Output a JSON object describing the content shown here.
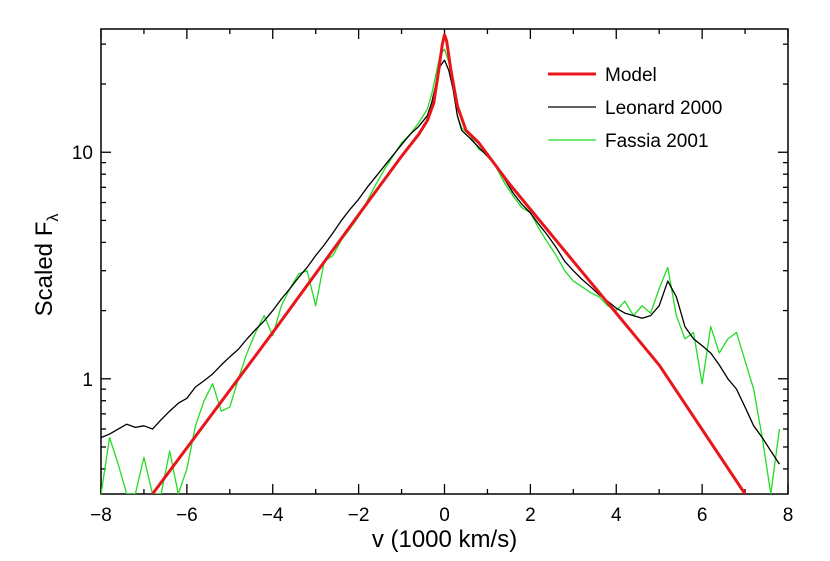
{
  "chart_data": {
    "type": "line",
    "title": "",
    "xlabel": "v (1000 km/s)",
    "ylabel_main": "Scaled F",
    "ylabel_sub": "λ",
    "xlim": [
      -8,
      8
    ],
    "ylim": [
      0.31,
      35
    ],
    "yscale": "log",
    "x_ticks": [
      -8,
      -6,
      -4,
      -2,
      0,
      2,
      4,
      6,
      8
    ],
    "x_tick_labels": [
      "−8",
      "−6",
      "−4",
      "−2",
      "0",
      "2",
      "4",
      "6",
      "8"
    ],
    "y_ticks": [
      1,
      10
    ],
    "y_tick_labels": [
      "1",
      "10"
    ],
    "legend_position": "top-right",
    "series": [
      {
        "name": "Model",
        "color": "#e8161b",
        "x": [
          -6.8,
          -4.0,
          -2.0,
          -1.0,
          -0.6,
          -0.4,
          -0.25,
          -0.15,
          -0.05,
          0.0,
          0.05,
          0.15,
          0.3,
          0.5,
          0.8,
          1.5,
          3.0,
          5.0,
          7.0
        ],
        "y": [
          0.31,
          1.6,
          5.3,
          9.6,
          12.0,
          13.8,
          16.5,
          22.0,
          30.0,
          33.0,
          31.0,
          23.0,
          16.0,
          12.5,
          11.0,
          7.3,
          3.3,
          1.15,
          0.31
        ]
      },
      {
        "name": "Leonard 2000",
        "color": "#000000",
        "x": [
          -8.0,
          -7.8,
          -7.6,
          -7.4,
          -7.2,
          -7.0,
          -6.8,
          -6.6,
          -6.4,
          -6.2,
          -6.0,
          -5.8,
          -5.6,
          -5.4,
          -5.2,
          -5.0,
          -4.8,
          -4.6,
          -4.4,
          -4.2,
          -4.0,
          -3.8,
          -3.6,
          -3.4,
          -3.2,
          -3.0,
          -2.8,
          -2.6,
          -2.4,
          -2.2,
          -2.0,
          -1.8,
          -1.6,
          -1.4,
          -1.2,
          -1.0,
          -0.8,
          -0.6,
          -0.4,
          -0.3,
          -0.2,
          -0.1,
          0.0,
          0.1,
          0.2,
          0.3,
          0.4,
          0.6,
          0.8,
          1.0,
          1.2,
          1.4,
          1.6,
          1.8,
          2.0,
          2.2,
          2.4,
          2.6,
          2.8,
          3.0,
          3.2,
          3.4,
          3.6,
          3.8,
          4.0,
          4.2,
          4.4,
          4.6,
          4.8,
          5.0,
          5.2,
          5.4,
          5.6,
          5.8,
          6.0,
          6.2,
          6.4,
          6.6,
          6.8,
          7.0,
          7.2,
          7.4,
          7.6,
          7.8
        ],
        "y": [
          0.55,
          0.57,
          0.6,
          0.63,
          0.61,
          0.62,
          0.6,
          0.66,
          0.72,
          0.78,
          0.82,
          0.92,
          0.98,
          1.05,
          1.15,
          1.25,
          1.35,
          1.5,
          1.65,
          1.8,
          2.0,
          2.25,
          2.5,
          2.8,
          3.1,
          3.5,
          3.9,
          4.4,
          5.0,
          5.6,
          6.2,
          7.0,
          7.8,
          8.7,
          9.7,
          10.8,
          12.0,
          13.0,
          14.5,
          16.5,
          20.0,
          24.0,
          25.5,
          23.0,
          19.0,
          14.5,
          12.5,
          11.5,
          10.5,
          9.6,
          8.7,
          7.6,
          6.6,
          5.9,
          5.4,
          4.8,
          4.3,
          3.8,
          3.3,
          3.0,
          2.75,
          2.55,
          2.35,
          2.2,
          2.05,
          1.95,
          1.9,
          1.85,
          1.9,
          2.1,
          2.7,
          2.3,
          1.7,
          1.5,
          1.4,
          1.3,
          1.15,
          1.0,
          0.9,
          0.75,
          0.62,
          0.55,
          0.48,
          0.42
        ]
      },
      {
        "name": "Fassia 2001",
        "color": "#22dd22",
        "x": [
          -8.0,
          -7.8,
          -7.6,
          -7.4,
          -7.2,
          -7.0,
          -6.8,
          -6.6,
          -6.4,
          -6.2,
          -6.0,
          -5.8,
          -5.6,
          -5.4,
          -5.2,
          -5.0,
          -4.8,
          -4.6,
          -4.4,
          -4.2,
          -4.0,
          -3.8,
          -3.6,
          -3.4,
          -3.2,
          -3.0,
          -2.8,
          -2.6,
          -2.4,
          -2.2,
          -2.0,
          -1.8,
          -1.6,
          -1.4,
          -1.2,
          -1.0,
          -0.8,
          -0.6,
          -0.4,
          -0.3,
          -0.2,
          -0.1,
          0.0,
          0.1,
          0.2,
          0.3,
          0.4,
          0.6,
          0.8,
          1.0,
          1.2,
          1.4,
          1.6,
          1.8,
          2.0,
          2.2,
          2.4,
          2.6,
          2.8,
          3.0,
          3.2,
          3.4,
          3.6,
          3.8,
          4.0,
          4.2,
          4.4,
          4.6,
          4.8,
          5.0,
          5.2,
          5.4,
          5.6,
          5.8,
          6.0,
          6.2,
          6.4,
          6.6,
          6.8,
          7.0,
          7.2,
          7.4,
          7.6,
          7.8
        ],
        "y": [
          0.31,
          0.55,
          0.42,
          0.31,
          0.31,
          0.45,
          0.31,
          0.31,
          0.48,
          0.31,
          0.4,
          0.62,
          0.8,
          0.95,
          0.72,
          0.75,
          1.0,
          1.3,
          1.6,
          1.9,
          1.55,
          2.1,
          2.5,
          2.9,
          3.0,
          2.1,
          3.3,
          3.5,
          4.1,
          4.6,
          5.2,
          6.1,
          7.2,
          8.4,
          9.6,
          11.0,
          12.0,
          13.5,
          15.5,
          18.0,
          22.0,
          27.0,
          28.5,
          25.0,
          19.0,
          14.5,
          12.8,
          11.8,
          10.3,
          9.8,
          8.6,
          7.3,
          6.4,
          5.7,
          5.4,
          4.6,
          4.0,
          3.5,
          3.0,
          2.7,
          2.55,
          2.4,
          2.3,
          2.1,
          2.0,
          2.2,
          1.9,
          2.1,
          1.95,
          2.5,
          3.1,
          1.9,
          1.5,
          1.6,
          0.95,
          1.7,
          1.3,
          1.5,
          1.6,
          1.2,
          0.9,
          0.55,
          0.31,
          0.6
        ]
      }
    ]
  }
}
